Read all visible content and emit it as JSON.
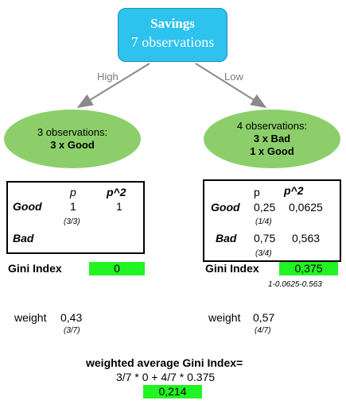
{
  "root": {
    "title": "Savings",
    "subtitle": "7 observations"
  },
  "edges": {
    "left": "High",
    "right": "Low"
  },
  "left_node": {
    "line1": "3 observations:",
    "line2": "3 x Good"
  },
  "right_node": {
    "line1": "4 observations:",
    "line2": "3 x Bad",
    "line3": "1 x Good"
  },
  "left_table": {
    "col_p": "p",
    "col_p2": "p^2",
    "row_good": {
      "label": "Good",
      "p": "1",
      "p2": "1",
      "note": "(3/3)"
    },
    "row_bad": {
      "label": "Bad"
    }
  },
  "right_table": {
    "col_p": "p",
    "col_p2": "p^2",
    "row_good": {
      "label": "Good",
      "p": "0,25",
      "p2": "0,0625",
      "note": "(1/4)"
    },
    "row_bad": {
      "label": "Bad",
      "p": "0,75",
      "p2": "0,563",
      "note": "(3/4)"
    }
  },
  "left_gini": {
    "label": "Gini Index",
    "value": "0"
  },
  "right_gini": {
    "label": "Gini Index",
    "value": "0,375",
    "formula": "1-0.0625-0.563"
  },
  "left_weight": {
    "label": "weight",
    "value": "0,43",
    "note": "(3/7)"
  },
  "right_weight": {
    "label": "weight",
    "value": "0,57",
    "note": "(4/7)"
  },
  "summary": {
    "title": "weighted average Gini Index=",
    "formula": "3/7 * 0 + 4/7 * 0.375",
    "value": "0,214"
  },
  "colors": {
    "root": "#2ec2ee",
    "leaf": "#8ccf6a",
    "highlight": "#22f322"
  }
}
